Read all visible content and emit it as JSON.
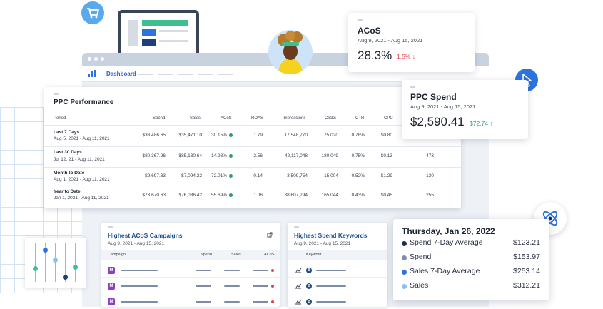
{
  "dashboard": {
    "nav_label": "Dashboard"
  },
  "ppc": {
    "title": "PPC Performance",
    "columns": [
      "Period",
      "Spend",
      "Sales",
      "ACoS",
      "ROAS",
      "Impressions",
      "Clicks",
      "CTR",
      "CPC"
    ],
    "rows": [
      {
        "period": "Last 7 Days",
        "range": "Aug 5, 2021 - Aug 11, 2021",
        "spend": "$33,486.65",
        "sales": "$35,471.10",
        "acos": "30.15%",
        "roas": "1.79",
        "impressions": "17,548,770",
        "clicks": "75,020",
        "ctr": "0.78%",
        "cpc": "$0.80",
        "extra": ""
      },
      {
        "period": "Last 30 Days",
        "range": "Jul 12, 21 - Aug 11, 2021",
        "spend": "$80,367.96",
        "sales": "$85,130.64",
        "acos": "14.93%",
        "roas": "2.56",
        "impressions": "42,117,048",
        "clicks": "180,049",
        "ctr": "0.75%",
        "cpc": "$0.13",
        "extra": "473"
      },
      {
        "period": "Month to Date",
        "range": "Aug 1, 2021 - Aug 11, 2021",
        "spend": "$9,697.33",
        "sales": "$7,094.22",
        "acos": "72.01%",
        "roas": "0.14",
        "impressions": "3,509,754",
        "clicks": "15,004",
        "ctr": "0.52%",
        "cpc": "$1.29",
        "extra": "130"
      },
      {
        "period": "Year to Date",
        "range": "Jan 1, 2021 - Aug 11, 2021",
        "spend": "$73,670.63",
        "sales": "$76,036.42",
        "acos": "55.69%",
        "roas": "1.06",
        "impressions": "38,607,294",
        "clicks": "165,044",
        "ctr": "0.43%",
        "cpc": "$0.45",
        "extra": "255"
      }
    ]
  },
  "acos_card": {
    "title": "ACoS",
    "range": "Aug 9, 2021 - Aug 15, 2021",
    "value": "28.3%",
    "delta": "1.5%",
    "delta_arrow": "↓"
  },
  "spend_card": {
    "title": "PPC Spend",
    "range": "Aug 9, 2021 - Aug 15, 2021",
    "value": "$2,590.41",
    "delta": "$72.74",
    "delta_arrow": "↑"
  },
  "tooltip": {
    "title": "Thursday, Jan 26, 2022",
    "rows": [
      {
        "name": "Spend 7-Day Average",
        "value": "$123.21",
        "color": "#1b2f56"
      },
      {
        "name": "Spend",
        "value": "$153.97",
        "color": "#7c8fab"
      },
      {
        "name": "Sales 7-Day Average",
        "value": "$253.14",
        "color": "#2c73e0"
      },
      {
        "name": "Sales",
        "value": "$312.21",
        "color": "#8ec0ee"
      }
    ]
  },
  "acos_campaigns": {
    "title": "Highest ACoS Campaigns",
    "range": "Aug 9, 2021 - Aug 15, 2021",
    "columns": [
      "Campaign",
      "Spend",
      "Sales",
      "ACoS"
    ],
    "badge": "M"
  },
  "spend_keywords": {
    "title": "Highest Spend Keywords",
    "range": "Aug 9, 2021 - Aug 15, 2021",
    "columns": [
      "Keyword"
    ],
    "badge": "B"
  }
}
